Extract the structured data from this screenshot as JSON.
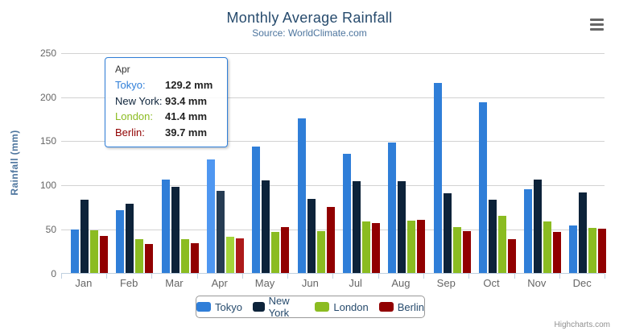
{
  "chart": {
    "title": "Monthly Average Rainfall",
    "subtitle": "Source: WorldClimate.com",
    "y_axis_title": "Rainfall (mm)",
    "credits": "Highcharts.com"
  },
  "chart_data": {
    "type": "bar",
    "title": "Monthly Average Rainfall",
    "subtitle": "Source: WorldClimate.com",
    "categories": [
      "Jan",
      "Feb",
      "Mar",
      "Apr",
      "May",
      "Jun",
      "Jul",
      "Aug",
      "Sep",
      "Oct",
      "Nov",
      "Dec"
    ],
    "series": [
      {
        "name": "Tokyo",
        "color": "#2f7ed8",
        "hover_color": "#4f97f1",
        "values": [
          49.9,
          71.5,
          106.4,
          129.2,
          144.0,
          176.0,
          135.6,
          148.5,
          216.4,
          194.1,
          95.6,
          54.4
        ]
      },
      {
        "name": "New York",
        "color": "#0d233a",
        "hover_color": "#263c53",
        "values": [
          83.6,
          78.8,
          98.5,
          93.4,
          106.0,
          84.5,
          105.0,
          104.3,
          91.2,
          83.5,
          106.6,
          92.3
        ]
      },
      {
        "name": "London",
        "color": "#8bbc21",
        "hover_color": "#a4d53a",
        "values": [
          48.9,
          38.8,
          39.3,
          41.4,
          47.0,
          48.3,
          59.0,
          59.6,
          52.4,
          65.2,
          59.3,
          51.2
        ]
      },
      {
        "name": "Berlin",
        "color": "#910000",
        "hover_color": "#ad1a1a",
        "values": [
          42.4,
          33.2,
          34.5,
          39.7,
          52.6,
          75.5,
          57.4,
          60.4,
          47.6,
          39.1,
          46.8,
          51.1
        ]
      }
    ],
    "xlabel": "",
    "ylabel": "Rainfall (mm)",
    "ylim": [
      0,
      250
    ],
    "yticks": [
      0,
      50,
      100,
      150,
      200,
      250
    ],
    "grid": true,
    "legend_position": "bottom",
    "hovered_category": "Apr",
    "axis_color": "#c0d0e0",
    "gridline_color": "#d2d2d2"
  },
  "tooltip": {
    "header": "Apr",
    "rows": [
      {
        "label": "Tokyo:",
        "value": "129.2 mm",
        "color": "#2f7ed8"
      },
      {
        "label": "New York:",
        "value": "93.4 mm",
        "color": "#0d233a"
      },
      {
        "label": "London:",
        "value": "41.4 mm",
        "color": "#8bbc21"
      },
      {
        "label": "Berlin:",
        "value": "39.7 mm",
        "color": "#910000"
      }
    ]
  },
  "legend": {
    "items": [
      {
        "label": "Tokyo",
        "color": "#2f7ed8"
      },
      {
        "label": "New York",
        "color": "#0d233a"
      },
      {
        "label": "London",
        "color": "#8bbc21"
      },
      {
        "label": "Berlin",
        "color": "#910000"
      }
    ]
  }
}
